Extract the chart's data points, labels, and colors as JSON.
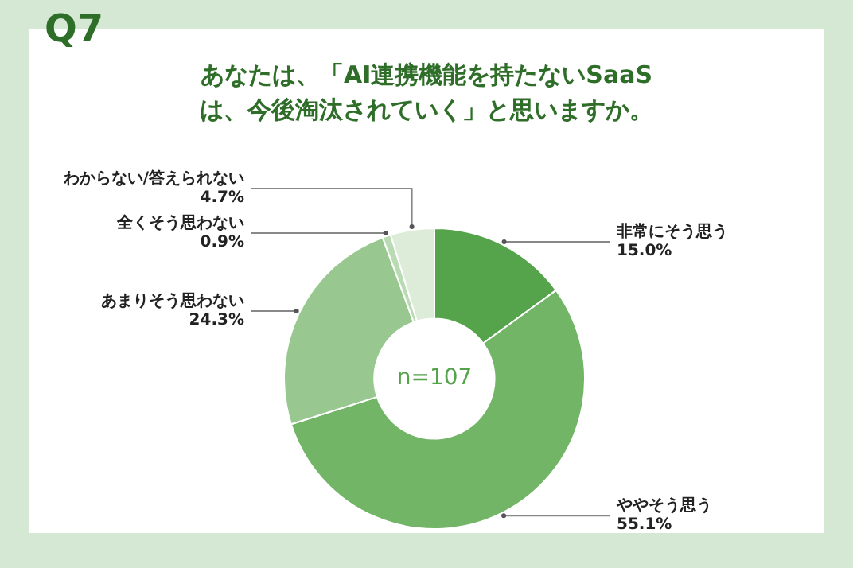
{
  "chart_data": {
    "type": "donut",
    "title": "Q7",
    "subtitle": "あなたは、「AI連携機能を持たないSaaSは、今後淘汰されていく」と思いますか。",
    "categories": [
      "非常にそう思う",
      "ややそう思う",
      "あまりそう思わない",
      "全くそう思わない",
      "わからない/答えられない"
    ],
    "values": [
      15.0,
      55.1,
      24.3,
      0.9,
      4.7
    ],
    "value_labels": [
      "15.0%",
      "55.1%",
      "24.3%",
      "0.9%",
      "4.7%"
    ],
    "colors": [
      "#55a34a",
      "#72b567",
      "#98c88f",
      "#b9dbb3",
      "#dcecd8"
    ],
    "annotations": [
      "n=107"
    ],
    "legend": false
  }
}
